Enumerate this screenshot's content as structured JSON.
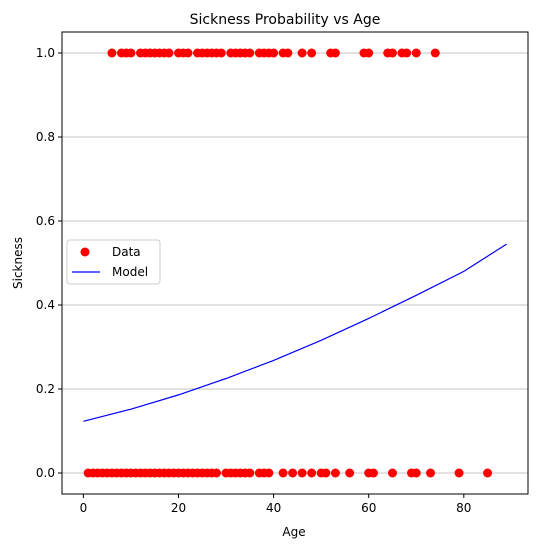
{
  "chart_data": {
    "type": "scatter",
    "title": "Sickness Probability vs Age",
    "xlabel": "Age",
    "ylabel": "Sickness",
    "xlim": [
      -4.5,
      93.5
    ],
    "ylim": [
      -0.05,
      1.05
    ],
    "xticks": [
      0,
      20,
      40,
      60,
      80
    ],
    "yticks": [
      0.0,
      0.2,
      0.4,
      0.6,
      0.8,
      1.0
    ],
    "xtick_labels": [
      "0",
      "20",
      "40",
      "60",
      "80"
    ],
    "ytick_labels": [
      "0.0",
      "0.2",
      "0.4",
      "0.6",
      "0.8",
      "1.0"
    ],
    "grid": "horizontal",
    "legend": {
      "position": "center-left",
      "entries": [
        {
          "label": "Data",
          "kind": "marker",
          "color": "#ff0000"
        },
        {
          "label": "Model",
          "kind": "line",
          "color": "#0000ff"
        }
      ]
    },
    "series": [
      {
        "name": "Data",
        "kind": "scatter",
        "color": "#ff0000",
        "points": [
          [
            6,
            1
          ],
          [
            8,
            1
          ],
          [
            9,
            1
          ],
          [
            10,
            1
          ],
          [
            12,
            1
          ],
          [
            13,
            1
          ],
          [
            14,
            1
          ],
          [
            15,
            1
          ],
          [
            16,
            1
          ],
          [
            17,
            1
          ],
          [
            18,
            1
          ],
          [
            20,
            1
          ],
          [
            21,
            1
          ],
          [
            22,
            1
          ],
          [
            24,
            1
          ],
          [
            25,
            1
          ],
          [
            26,
            1
          ],
          [
            27,
            1
          ],
          [
            28,
            1
          ],
          [
            29,
            1
          ],
          [
            31,
            1
          ],
          [
            32,
            1
          ],
          [
            33,
            1
          ],
          [
            34,
            1
          ],
          [
            35,
            1
          ],
          [
            37,
            1
          ],
          [
            38,
            1
          ],
          [
            39,
            1
          ],
          [
            40,
            1
          ],
          [
            42,
            1
          ],
          [
            43,
            1
          ],
          [
            46,
            1
          ],
          [
            48,
            1
          ],
          [
            52,
            1
          ],
          [
            53,
            1
          ],
          [
            59,
            1
          ],
          [
            60,
            1
          ],
          [
            64,
            1
          ],
          [
            65,
            1
          ],
          [
            67,
            1
          ],
          [
            68,
            1
          ],
          [
            70,
            1
          ],
          [
            74,
            1
          ],
          [
            1,
            0
          ],
          [
            2,
            0
          ],
          [
            3,
            0
          ],
          [
            4,
            0
          ],
          [
            5,
            0
          ],
          [
            6,
            0
          ],
          [
            7,
            0
          ],
          [
            8,
            0
          ],
          [
            9,
            0
          ],
          [
            10,
            0
          ],
          [
            11,
            0
          ],
          [
            12,
            0
          ],
          [
            13,
            0
          ],
          [
            14,
            0
          ],
          [
            15,
            0
          ],
          [
            16,
            0
          ],
          [
            17,
            0
          ],
          [
            18,
            0
          ],
          [
            19,
            0
          ],
          [
            20,
            0
          ],
          [
            21,
            0
          ],
          [
            22,
            0
          ],
          [
            23,
            0
          ],
          [
            24,
            0
          ],
          [
            25,
            0
          ],
          [
            26,
            0
          ],
          [
            27,
            0
          ],
          [
            28,
            0
          ],
          [
            30,
            0
          ],
          [
            31,
            0
          ],
          [
            32,
            0
          ],
          [
            33,
            0
          ],
          [
            34,
            0
          ],
          [
            35,
            0
          ],
          [
            37,
            0
          ],
          [
            38,
            0
          ],
          [
            39,
            0
          ],
          [
            42,
            0
          ],
          [
            44,
            0
          ],
          [
            46,
            0
          ],
          [
            48,
            0
          ],
          [
            50,
            0
          ],
          [
            51,
            0
          ],
          [
            53,
            0
          ],
          [
            56,
            0
          ],
          [
            60,
            0
          ],
          [
            61,
            0
          ],
          [
            65,
            0
          ],
          [
            69,
            0
          ],
          [
            70,
            0
          ],
          [
            73,
            0
          ],
          [
            79,
            0
          ],
          [
            85,
            0
          ]
        ]
      },
      {
        "name": "Model",
        "kind": "line",
        "color": "#0000ff",
        "x": [
          0,
          10,
          20,
          30,
          40,
          50,
          60,
          70,
          80,
          89
        ],
        "y": [
          0.123,
          0.152,
          0.186,
          0.225,
          0.268,
          0.316,
          0.368,
          0.423,
          0.48,
          0.545
        ]
      }
    ]
  }
}
